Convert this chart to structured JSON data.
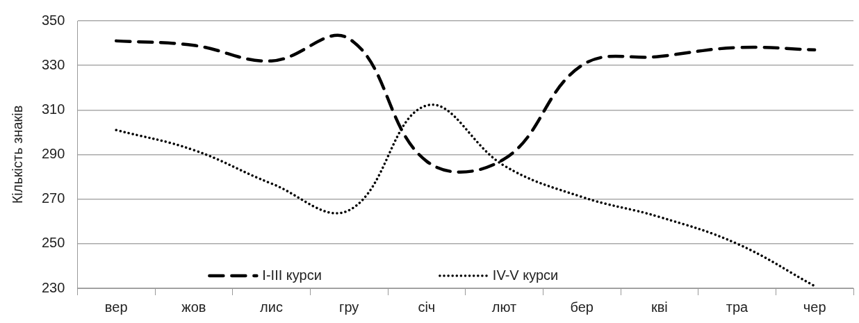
{
  "chart_data": {
    "type": "line",
    "ylabel": "Кількість знаків",
    "categories": [
      "вер",
      "жов",
      "лис",
      "гру",
      "січ",
      "лют",
      "бер",
      "кві",
      "тра",
      "чер"
    ],
    "series": [
      {
        "name": "I-III курси",
        "color": "#000000",
        "line_style": "dashed",
        "values": [
          341,
          339,
          332,
          342,
          287,
          288,
          330,
          334,
          338,
          337
        ]
      },
      {
        "name": "IV-V курси",
        "color": "#000000",
        "line_style": "dotted",
        "values": [
          301,
          292,
          277,
          265,
          312,
          285,
          271,
          262,
          250,
          231
        ]
      }
    ],
    "ylim": [
      230,
      350
    ],
    "yticks": [
      230,
      250,
      270,
      290,
      310,
      330,
      350
    ],
    "grid": "y",
    "legend": "bottom",
    "marker": "none"
  }
}
